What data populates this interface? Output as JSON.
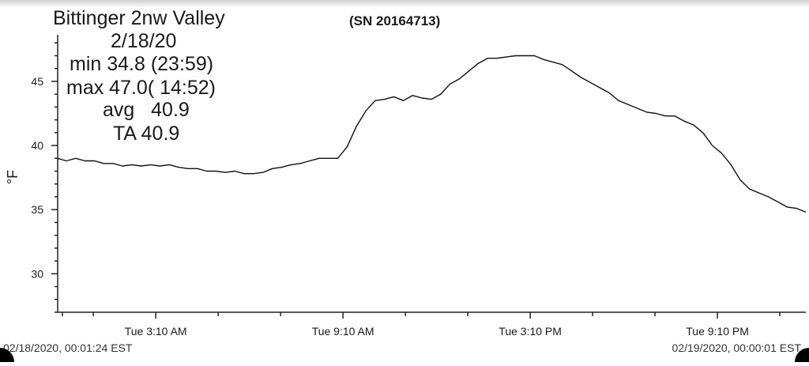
{
  "header": {
    "title": "Bittinger 2nw Valley",
    "date": "2/18/20",
    "min": "min 34.8 (23:59)",
    "max": "max 47.0( 14:52)",
    "avg": "avg   40.9",
    "ta": "TA 40.9",
    "serial": "(SN 20164713)"
  },
  "footer": {
    "start": "02/18/2020, 00:01:24 EST",
    "end": "02/19/2020, 00:00:01 EST"
  },
  "chart_data": {
    "type": "line",
    "ylabel": "°F",
    "xlabel": "",
    "ylim": [
      27,
      49
    ],
    "yticks": [
      30,
      35,
      40,
      45
    ],
    "x_range_hours": [
      0.0235,
      24.0
    ],
    "xtick_hours": [
      3.1667,
      9.1667,
      15.1667,
      21.1667
    ],
    "xtick_labels": [
      "Tue 3:10 AM",
      "Tue 9:10 AM",
      "Tue 3:10 PM",
      "Tue 9:10 PM"
    ],
    "line_color": "#111111",
    "series": [
      {
        "x": [
          0.02,
          0.3,
          0.6,
          0.9,
          1.2,
          1.5,
          1.8,
          2.1,
          2.4,
          2.7,
          3.0,
          3.3,
          3.6,
          3.9,
          4.2,
          4.5,
          4.8,
          5.1,
          5.4,
          5.7,
          6.0,
          6.3,
          6.6,
          6.9,
          7.2,
          7.5,
          7.8,
          8.1,
          8.4,
          8.7,
          9.0,
          9.3,
          9.6,
          9.9,
          10.2,
          10.5,
          10.8,
          11.1,
          11.4,
          11.7,
          12.0,
          12.3,
          12.6,
          12.9,
          13.2,
          13.5,
          13.8,
          14.1,
          14.4,
          14.7,
          15.0,
          15.3,
          15.6,
          15.9,
          16.2,
          16.5,
          16.8,
          17.1,
          17.4,
          17.7,
          18.0,
          18.3,
          18.6,
          18.9,
          19.2,
          19.5,
          19.8,
          20.1,
          20.4,
          20.7,
          21.0,
          21.3,
          21.6,
          21.9,
          22.2,
          22.5,
          22.8,
          23.1,
          23.4,
          23.7,
          24.0
        ],
        "y": [
          39.0,
          38.8,
          39.0,
          38.8,
          38.8,
          38.6,
          38.6,
          38.4,
          38.5,
          38.4,
          38.5,
          38.4,
          38.5,
          38.3,
          38.2,
          38.2,
          38.0,
          38.0,
          37.9,
          38.0,
          37.8,
          37.8,
          37.9,
          38.2,
          38.3,
          38.5,
          38.6,
          38.8,
          39.0,
          39.0,
          39.0,
          39.9,
          41.5,
          42.7,
          43.5,
          43.6,
          43.8,
          43.5,
          43.9,
          43.7,
          43.6,
          44.0,
          44.8,
          45.2,
          45.8,
          46.4,
          46.8,
          46.8,
          46.9,
          47.0,
          47.0,
          47.0,
          46.7,
          46.5,
          46.3,
          45.8,
          45.3,
          44.9,
          44.5,
          44.1,
          43.5,
          43.2,
          42.9,
          42.6,
          42.5,
          42.3,
          42.3,
          41.9,
          41.6,
          41.0,
          40.0,
          39.4,
          38.5,
          37.3,
          36.6,
          36.3,
          36.0,
          35.6,
          35.2,
          35.1,
          34.8
        ]
      }
    ]
  }
}
